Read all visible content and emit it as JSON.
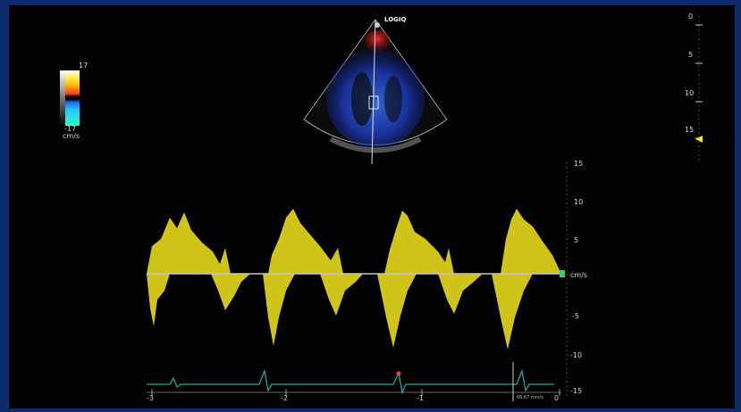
{
  "brand": {
    "logo_text": "LOGIQ"
  },
  "color_scale": {
    "top_value": "17",
    "bottom_value": "-17",
    "unit": "cm/s"
  },
  "depth_scale": {
    "ticks": [
      "0",
      "5",
      "10",
      "15"
    ]
  },
  "doppler": {
    "unit": "cm/s",
    "y_ticks": [
      "15",
      "10",
      "5",
      "-5",
      "-10",
      "-15"
    ],
    "x_ticks": [
      "-3",
      "-2",
      "-1",
      "0"
    ],
    "heart_rate_label": "66.67 mm/s"
  },
  "colors": {
    "border": "#0d2a6e",
    "spectral": "#f5e51f",
    "ecg": "#1fa89a",
    "baseline": "#c7c7c7"
  }
}
